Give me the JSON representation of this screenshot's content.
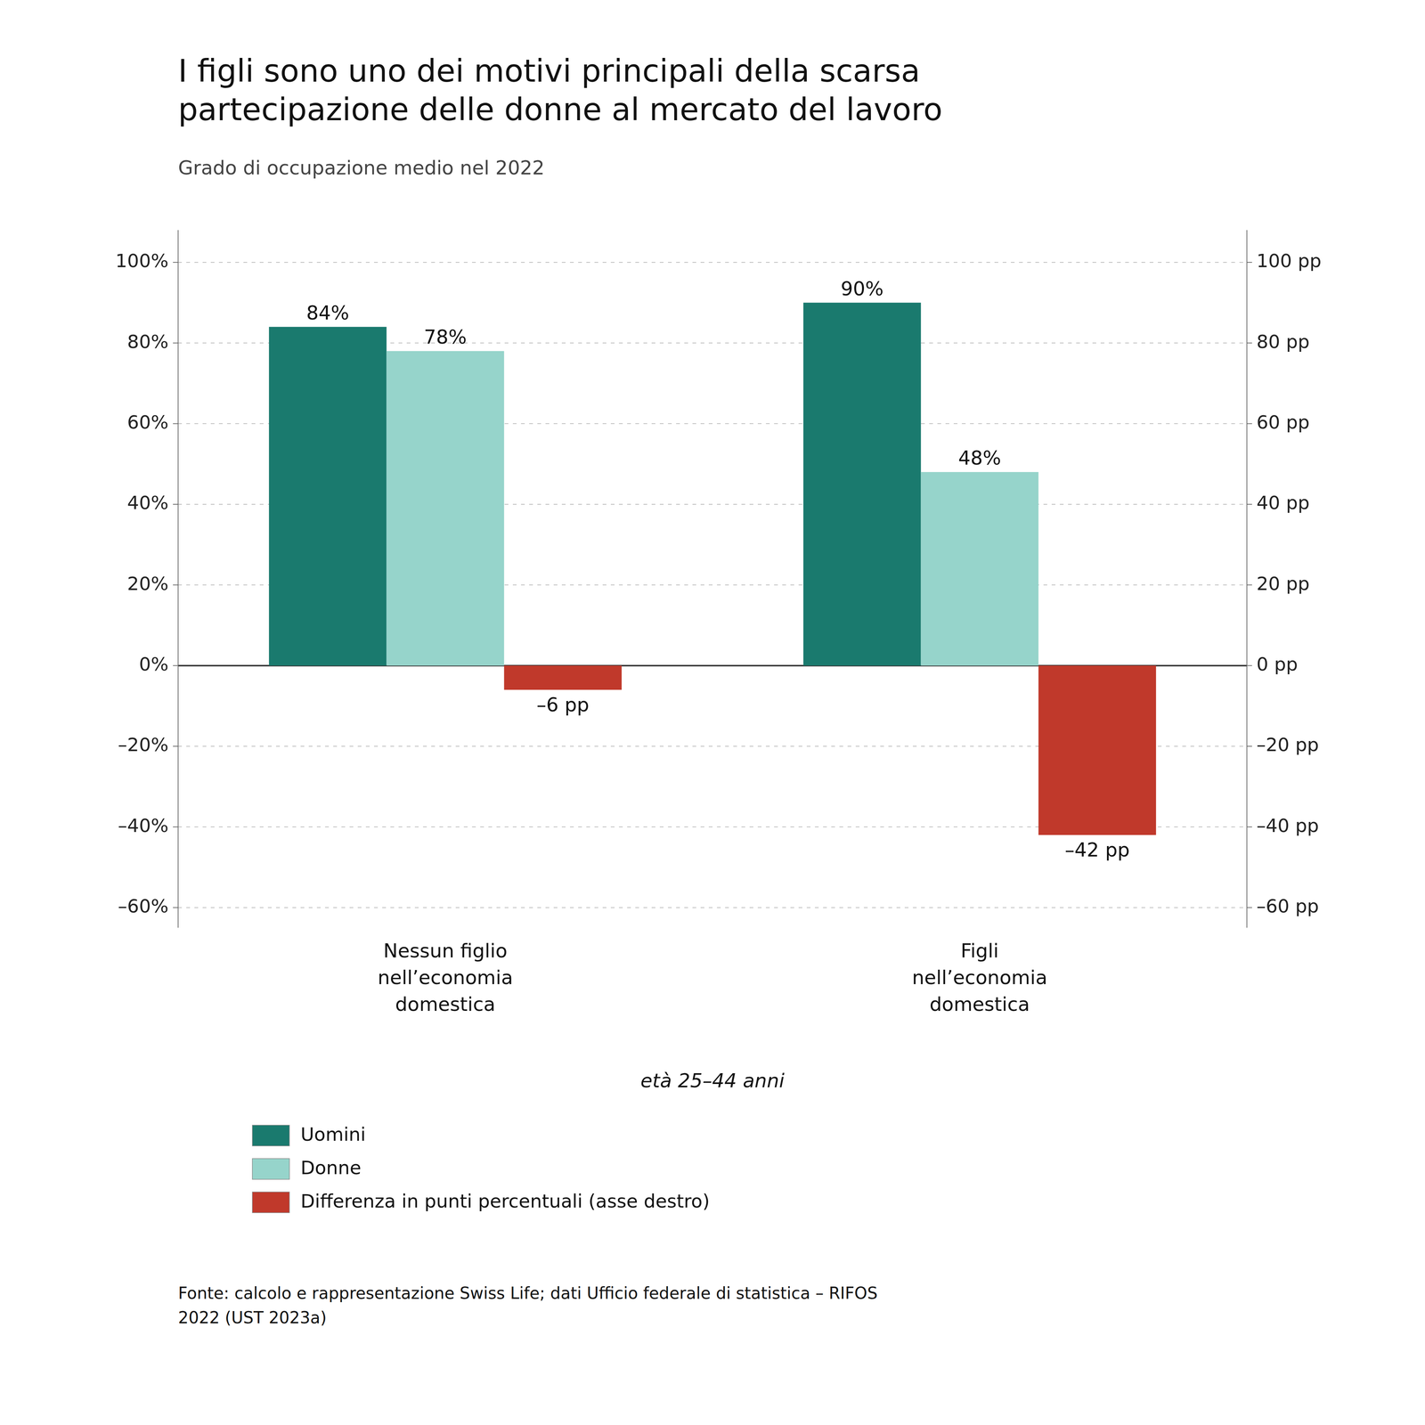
{
  "chart_data": {
    "type": "bar",
    "title": "I figli sono uno dei motivi principali della scarsa\npartecipazione delle donne al mercato del lavoro",
    "subtitle": "Grado di occupazione medio nel 2022",
    "xlabel": "età 25–44 anni",
    "source": "Fonte: calcolo e rappresentazione Swiss Life; dati Ufficio federale di statistica – RIFOS\n2022 (UST 2023a)",
    "categories": [
      "Nessun figlio\nnell’economia\ndomestica",
      "Figli\nnell’economia\ndomestica"
    ],
    "series": [
      {
        "name": "Uomini",
        "color": "#1a7a6e",
        "values": [
          84,
          90
        ],
        "value_labels": [
          "84%",
          "90%"
        ]
      },
      {
        "name": "Donne",
        "color": "#96d4cb",
        "values": [
          78,
          48
        ],
        "value_labels": [
          "78%",
          "48%"
        ]
      },
      {
        "name": "Differenza in punti percentuali (asse destro)",
        "color": "#c0392b",
        "values": [
          -6,
          -42
        ],
        "value_labels": [
          "–6 pp",
          "–42 pp"
        ],
        "axis": "y2"
      }
    ],
    "ylim": [
      -65,
      108
    ],
    "yticks": [
      {
        "value": -60,
        "label": "–60%"
      },
      {
        "value": -40,
        "label": "–40%"
      },
      {
        "value": -20,
        "label": "–20%"
      },
      {
        "value": 0,
        "label": "0%"
      },
      {
        "value": 20,
        "label": "20%"
      },
      {
        "value": 40,
        "label": "40%"
      },
      {
        "value": 60,
        "label": "60%"
      },
      {
        "value": 80,
        "label": "80%"
      },
      {
        "value": 100,
        "label": "100%"
      }
    ],
    "y2lim": [
      -65,
      108
    ],
    "y2ticks": [
      {
        "value": -60,
        "label": "–60 pp"
      },
      {
        "value": -40,
        "label": "–40 pp"
      },
      {
        "value": -20,
        "label": "–20 pp"
      },
      {
        "value": 0,
        "label": "0 pp"
      },
      {
        "value": 20,
        "label": "20 pp"
      },
      {
        "value": 40,
        "label": "40 pp"
      },
      {
        "value": 60,
        "label": "60 pp"
      },
      {
        "value": 80,
        "label": "80 pp"
      },
      {
        "value": 100,
        "label": "100 pp"
      }
    ],
    "grid": true,
    "legend": "bottom",
    "data_labels": true
  }
}
